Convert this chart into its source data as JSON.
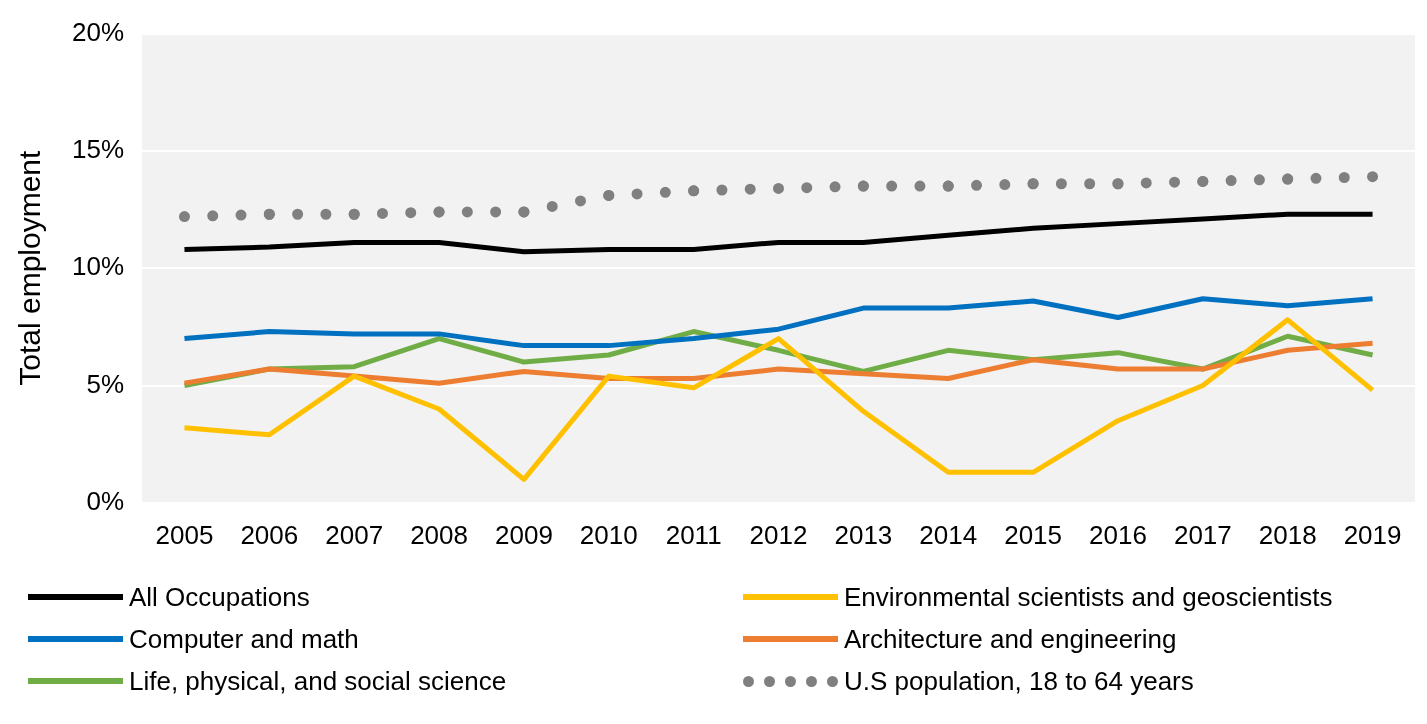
{
  "chart_data": {
    "type": "line",
    "ylabel": "Total employment",
    "categories": [
      "2005",
      "2006",
      "2007",
      "2008",
      "2009",
      "2010",
      "2011",
      "2012",
      "2013",
      "2014",
      "2015",
      "2016",
      "2017",
      "2018",
      "2019"
    ],
    "ylim": [
      0,
      20
    ],
    "yticks": [
      {
        "value": 0,
        "label": "0%"
      },
      {
        "value": 5,
        "label": "5%"
      },
      {
        "value": 10,
        "label": "10%"
      },
      {
        "value": 15,
        "label": "15%"
      },
      {
        "value": 20,
        "label": "20%"
      }
    ],
    "grid": "y",
    "legend": "bottom",
    "marker": "none",
    "series": [
      {
        "name": "All Occupations",
        "color": "#000000",
        "values": [
          10.8,
          10.9,
          11.1,
          11.1,
          10.7,
          10.8,
          10.8,
          11.1,
          11.1,
          11.4,
          11.7,
          11.9,
          12.1,
          12.3,
          12.3
        ]
      },
      {
        "name": "Environmental scientists and geoscientists",
        "color": "#ffc000",
        "values": [
          3.2,
          2.9,
          5.4,
          4.0,
          1.0,
          5.4,
          4.9,
          7.0,
          3.9,
          1.3,
          1.3,
          3.5,
          5.0,
          7.8,
          4.8
        ]
      },
      {
        "name": "Computer and math",
        "color": "#0070c0",
        "values": [
          7.0,
          7.3,
          7.2,
          7.2,
          6.7,
          6.7,
          7.0,
          7.4,
          8.3,
          8.3,
          8.6,
          7.9,
          8.7,
          8.4,
          8.7
        ]
      },
      {
        "name": "Architecture and engineering",
        "color": "#ed7d31",
        "values": [
          5.1,
          5.7,
          5.4,
          5.1,
          5.6,
          5.3,
          5.3,
          5.7,
          5.5,
          5.3,
          6.1,
          5.7,
          5.7,
          6.5,
          6.8
        ]
      },
      {
        "name": "Life, physical, and social science",
        "color": "#70ad47",
        "values": [
          5.0,
          5.7,
          5.8,
          7.0,
          6.0,
          6.3,
          7.3,
          6.5,
          5.6,
          6.5,
          6.1,
          6.4,
          5.7,
          7.1,
          6.3
        ]
      },
      {
        "name": "U.S population, 18 to 64 years",
        "color": "#808080",
        "line_style": "dotted",
        "values": [
          12.2,
          12.3,
          12.3,
          12.4,
          12.4,
          13.1,
          13.3,
          13.4,
          13.5,
          13.5,
          13.6,
          13.6,
          13.7,
          13.8,
          13.9
        ]
      }
    ]
  }
}
